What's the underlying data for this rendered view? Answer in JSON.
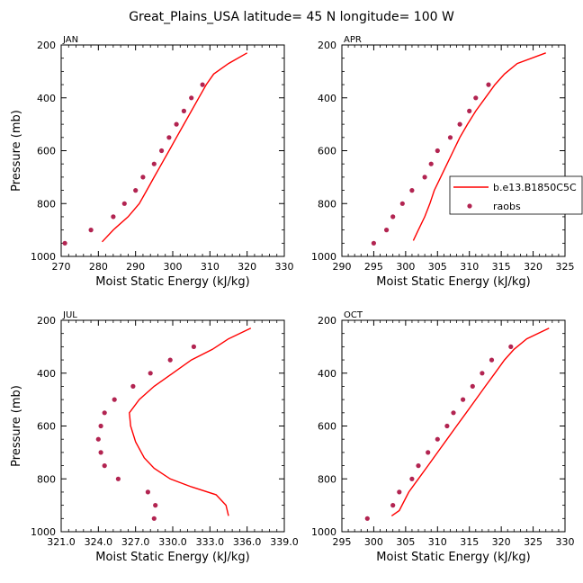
{
  "figure_title": "Great_Plains_USA  latitude= 45 N longitude= 100 W",
  "colors": {
    "model": "#ff0000",
    "obs": "#b22451"
  },
  "legend": {
    "model_label": "b.e13.B1850C5C",
    "obs_label": "raobs"
  },
  "chart_data": [
    {
      "type": "line",
      "panel": "JAN",
      "title": "JAN",
      "xlabel": "Moist Static Energy (kJ/kg)",
      "ylabel": "Pressure (mb)",
      "xlim": [
        270,
        330
      ],
      "xticks": [
        270,
        280,
        290,
        300,
        310,
        320,
        330
      ],
      "xtick_labels": [
        "270",
        "280",
        "290",
        "300",
        "310",
        "320",
        "330"
      ],
      "ylim": [
        1000,
        200
      ],
      "yticks": [
        200,
        400,
        600,
        800,
        1000
      ],
      "series": [
        {
          "name": "b.e13.B1850C5C",
          "kind": "line",
          "points": [
            [
              281,
              945
            ],
            [
              284,
              900
            ],
            [
              288,
              850
            ],
            [
              291,
              800
            ],
            [
              293,
              750
            ],
            [
              295,
              700
            ],
            [
              297,
              650
            ],
            [
              299,
              600
            ],
            [
              301,
              550
            ],
            [
              303,
              500
            ],
            [
              305,
              450
            ],
            [
              307,
              400
            ],
            [
              309,
              350
            ],
            [
              311,
              310
            ],
            [
              315,
              270
            ],
            [
              320,
              230
            ]
          ]
        },
        {
          "name": "raobs",
          "kind": "scatter",
          "points": [
            [
              271,
              950
            ],
            [
              278,
              900
            ],
            [
              284,
              850
            ],
            [
              287,
              800
            ],
            [
              290,
              750
            ],
            [
              292,
              700
            ],
            [
              295,
              650
            ],
            [
              297,
              600
            ],
            [
              299,
              550
            ],
            [
              301,
              500
            ],
            [
              303,
              450
            ],
            [
              305,
              400
            ],
            [
              308,
              350
            ]
          ]
        }
      ]
    },
    {
      "type": "line",
      "panel": "APR",
      "title": "APR",
      "xlabel": "Moist Static Energy (kJ/kg)",
      "ylabel": "",
      "xlim": [
        290,
        325
      ],
      "xticks": [
        290,
        295,
        300,
        305,
        310,
        315,
        320,
        325
      ],
      "xtick_labels": [
        "290",
        "295",
        "300",
        "305",
        "310",
        "315",
        "320",
        "325"
      ],
      "ylim": [
        1000,
        200
      ],
      "yticks": [
        200,
        400,
        600,
        800,
        1000
      ],
      "series": [
        {
          "name": "b.e13.B1850C5C",
          "kind": "line",
          "points": [
            [
              301.2,
              940
            ],
            [
              302,
              900
            ],
            [
              303,
              850
            ],
            [
              303.8,
              800
            ],
            [
              304.5,
              750
            ],
            [
              305.5,
              700
            ],
            [
              306.5,
              650
            ],
            [
              307.5,
              600
            ],
            [
              308.5,
              550
            ],
            [
              309.7,
              500
            ],
            [
              311,
              450
            ],
            [
              312.5,
              400
            ],
            [
              314,
              350
            ],
            [
              315.5,
              310
            ],
            [
              317.5,
              270
            ],
            [
              322,
              230
            ]
          ]
        },
        {
          "name": "raobs",
          "kind": "scatter",
          "points": [
            [
              295,
              950
            ],
            [
              297,
              900
            ],
            [
              298,
              850
            ],
            [
              299.5,
              800
            ],
            [
              301,
              750
            ],
            [
              303,
              700
            ],
            [
              304,
              650
            ],
            [
              305,
              600
            ],
            [
              307,
              550
            ],
            [
              308.5,
              500
            ],
            [
              310,
              450
            ],
            [
              311,
              400
            ],
            [
              313,
              350
            ]
          ]
        }
      ]
    },
    {
      "type": "line",
      "panel": "JUL",
      "title": "JUL",
      "xlabel": "Moist Static Energy (kJ/kg)",
      "ylabel": "Pressure (mb)",
      "xlim": [
        321,
        339
      ],
      "xticks": [
        321,
        324,
        327,
        330,
        333,
        336,
        339
      ],
      "xtick_labels": [
        "321.0",
        "324.0",
        "327.0",
        "330.0",
        "333.0",
        "336.0",
        "339.0"
      ],
      "ylim": [
        1000,
        200
      ],
      "yticks": [
        200,
        400,
        600,
        800,
        1000
      ],
      "series": [
        {
          "name": "b.e13.B1850C5C",
          "kind": "line",
          "points": [
            [
              334.5,
              940
            ],
            [
              334.3,
              900
            ],
            [
              333.5,
              860
            ],
            [
              331.5,
              830
            ],
            [
              329.8,
              800
            ],
            [
              328.5,
              760
            ],
            [
              327.7,
              720
            ],
            [
              327,
              660
            ],
            [
              326.6,
              600
            ],
            [
              326.5,
              550
            ],
            [
              327.3,
              500
            ],
            [
              328.5,
              450
            ],
            [
              330,
              400
            ],
            [
              331.5,
              350
            ],
            [
              333.2,
              310
            ],
            [
              334.5,
              270
            ],
            [
              336.3,
              230
            ]
          ]
        },
        {
          "name": "raobs",
          "kind": "scatter",
          "points": [
            [
              328.5,
              950
            ],
            [
              328.6,
              900
            ],
            [
              328,
              850
            ],
            [
              325.6,
              800
            ],
            [
              324.5,
              750
            ],
            [
              324.2,
              700
            ],
            [
              324,
              650
            ],
            [
              324.2,
              600
            ],
            [
              324.5,
              550
            ],
            [
              325.3,
              500
            ],
            [
              326.8,
              450
            ],
            [
              328.2,
              400
            ],
            [
              329.8,
              350
            ],
            [
              331.7,
              300
            ]
          ]
        }
      ]
    },
    {
      "type": "line",
      "panel": "OCT",
      "title": "OCT",
      "xlabel": "Moist Static Energy (kJ/kg)",
      "ylabel": "",
      "xlim": [
        295,
        330
      ],
      "xticks": [
        295,
        300,
        305,
        310,
        315,
        320,
        325,
        330
      ],
      "xtick_labels": [
        "295",
        "300",
        "305",
        "310",
        "315",
        "320",
        "325",
        "330"
      ],
      "ylim": [
        1000,
        200
      ],
      "yticks": [
        200,
        400,
        600,
        800,
        1000
      ],
      "series": [
        {
          "name": "b.e13.B1850C5C",
          "kind": "line",
          "points": [
            [
              302.8,
              940
            ],
            [
              304,
              920
            ],
            [
              305.5,
              850
            ],
            [
              307,
              800
            ],
            [
              308.5,
              750
            ],
            [
              310,
              700
            ],
            [
              311.5,
              650
            ],
            [
              313,
              600
            ],
            [
              314.5,
              550
            ],
            [
              316,
              500
            ],
            [
              317.5,
              450
            ],
            [
              319,
              400
            ],
            [
              320.5,
              350
            ],
            [
              322,
              310
            ],
            [
              324,
              270
            ],
            [
              327.5,
              230
            ]
          ]
        },
        {
          "name": "raobs",
          "kind": "scatter",
          "points": [
            [
              299,
              950
            ],
            [
              303,
              900
            ],
            [
              304,
              850
            ],
            [
              306,
              800
            ],
            [
              307,
              750
            ],
            [
              308.5,
              700
            ],
            [
              310,
              650
            ],
            [
              311.5,
              600
            ],
            [
              312.5,
              550
            ],
            [
              314,
              500
            ],
            [
              315.5,
              450
            ],
            [
              317,
              400
            ],
            [
              318.5,
              350
            ],
            [
              321.5,
              300
            ]
          ]
        }
      ]
    }
  ]
}
